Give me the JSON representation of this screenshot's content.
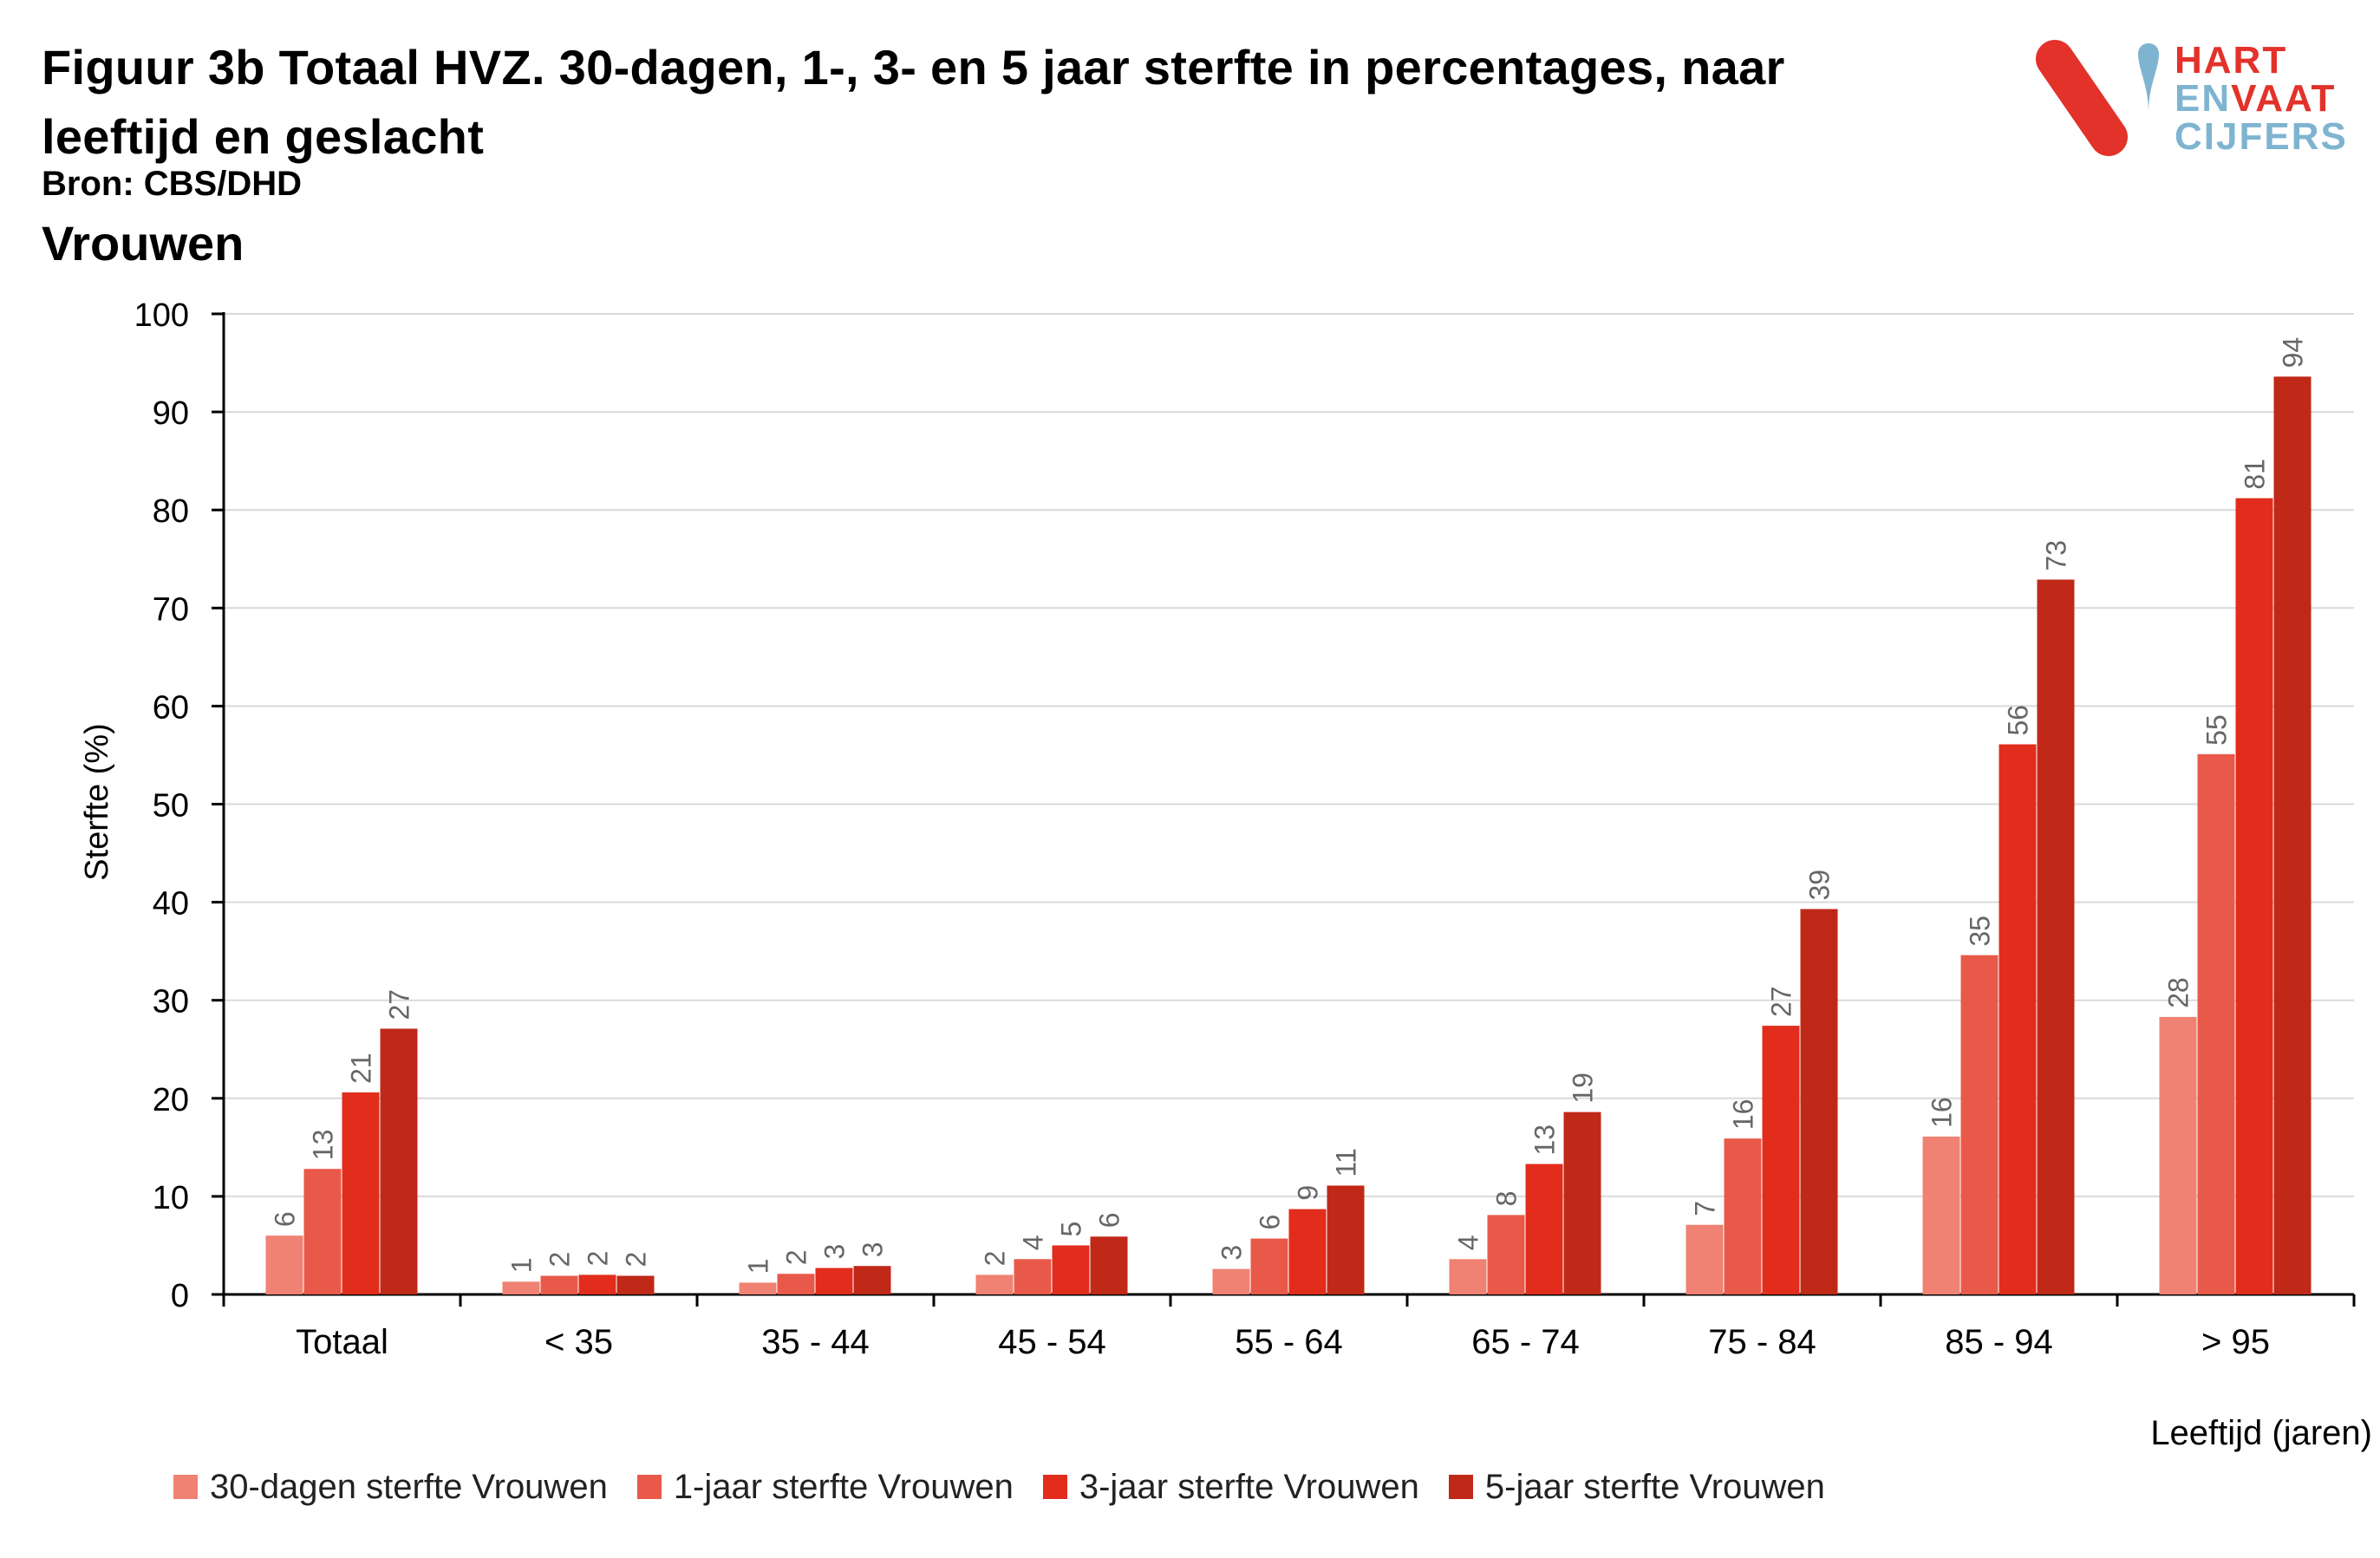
{
  "header": {
    "title": "Figuur 3b Totaal HVZ. 30-dagen, 1-, 3- en 5 jaar sterfte in percentages, naar leeftijd en geslacht",
    "source": "Bron: CBS/DHD",
    "subtitle": "Vrouwen"
  },
  "logo": {
    "line1": "HART",
    "line2a": "EN",
    "line2b": "VAAT",
    "line3": "CIJFERS",
    "colors": {
      "red": "#e2322a",
      "blue": "#7fb4d1"
    }
  },
  "chart_data": {
    "type": "bar",
    "title": "",
    "xlabel": "Leeftijd (jaren)",
    "ylabel": "Sterfte (%)",
    "ylim": [
      0,
      100
    ],
    "yticks": [
      0,
      10,
      20,
      30,
      40,
      50,
      60,
      70,
      80,
      90,
      100
    ],
    "grid": true,
    "legend_position": "bottom",
    "categories": [
      "Totaal",
      "< 35",
      "35 - 44",
      "45 - 54",
      "55 - 64",
      "65 - 74",
      "75 - 84",
      "85 - 94",
      "> 95"
    ],
    "series": [
      {
        "name": "30-dagen sterfte Vrouwen",
        "color": "#ef8273",
        "values": [
          6,
          1.3,
          1.2,
          2,
          2.6,
          3.6,
          7.1,
          16.1,
          28.3
        ],
        "labels": [
          "6",
          "1",
          "1",
          "2",
          "3",
          "4",
          "7",
          "16",
          "28"
        ]
      },
      {
        "name": "1-jaar sterfte Vrouwen",
        "color": "#e8594a",
        "values": [
          12.8,
          1.9,
          2.1,
          3.6,
          5.7,
          8.1,
          15.9,
          34.6,
          55.1
        ],
        "labels": [
          "13",
          "2",
          "2",
          "4",
          "6",
          "8",
          "16",
          "35",
          "55"
        ]
      },
      {
        "name": "3-jaar sterfte Vrouwen",
        "color": "#e22c1c",
        "values": [
          20.6,
          2,
          2.7,
          5,
          8.7,
          13.3,
          27.4,
          56.1,
          81.2
        ],
        "labels": [
          "21",
          "2",
          "3",
          "5",
          "9",
          "13",
          "27",
          "56",
          "81"
        ]
      },
      {
        "name": "5-jaar sterfte Vrouwen",
        "color": "#c02818",
        "values": [
          27.1,
          1.9,
          2.9,
          5.9,
          11.1,
          18.6,
          39.3,
          72.9,
          93.6
        ],
        "labels": [
          "27",
          "2",
          "3",
          "6",
          "11",
          "19",
          "39",
          "73",
          "94"
        ]
      }
    ]
  }
}
